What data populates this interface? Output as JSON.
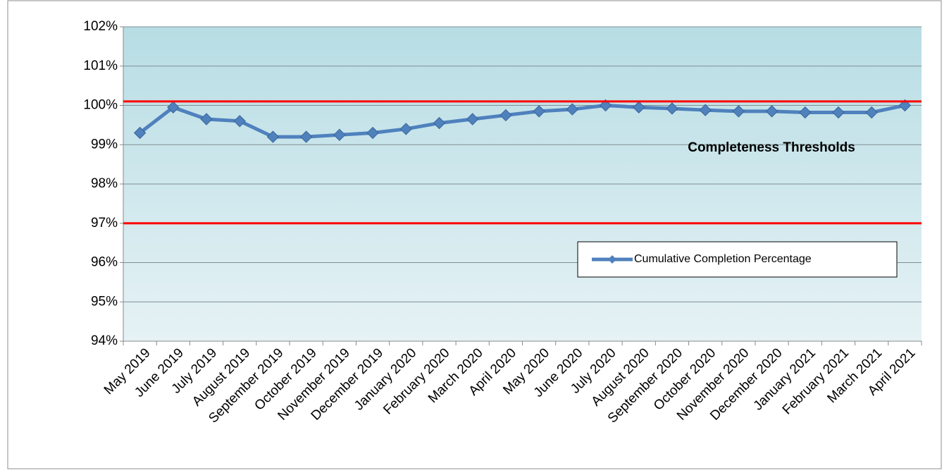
{
  "chart_data": {
    "type": "line",
    "categories": [
      "May 2019",
      "June 2019",
      "July 2019",
      "August 2019",
      "September 2019",
      "October 2019",
      "November 2019",
      "December 2019",
      "January 2020",
      "February 2020",
      "March 2020",
      "April 2020",
      "May 2020",
      "June 2020",
      "July 2020",
      "August 2020",
      "September 2020",
      "October 2020",
      "November 2020",
      "December 2020",
      "January 2021",
      "February 2021",
      "March 2021",
      "April 2021"
    ],
    "series": [
      {
        "name": "Cumulative Completion Percentage",
        "color": "#4f81bd",
        "values": [
          99.3,
          99.95,
          99.65,
          99.6,
          99.2,
          99.2,
          99.25,
          99.3,
          99.4,
          99.55,
          99.65,
          99.75,
          99.85,
          99.9,
          100.0,
          99.95,
          99.92,
          99.88,
          99.85,
          99.85,
          99.82,
          99.82,
          99.82,
          100.0
        ]
      }
    ],
    "ylim": [
      94,
      102
    ],
    "yticks": [
      {
        "value": 94,
        "label": "94%"
      },
      {
        "value": 95,
        "label": "95%"
      },
      {
        "value": 96,
        "label": "96%"
      },
      {
        "value": 97,
        "label": "97%"
      },
      {
        "value": 98,
        "label": "98%"
      },
      {
        "value": 99,
        "label": "99%"
      },
      {
        "value": 100,
        "label": "100%"
      },
      {
        "value": 101,
        "label": "101%"
      },
      {
        "value": 102,
        "label": "102%"
      }
    ],
    "grid": true,
    "thresholds": {
      "label": "Completeness Thresholds",
      "color": "#ff0000",
      "values": [
        100.1,
        97.0
      ]
    },
    "legend": "right"
  }
}
